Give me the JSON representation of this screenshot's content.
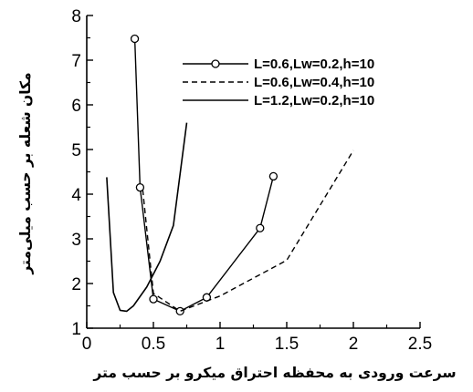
{
  "chart_data": {
    "type": "line",
    "xlabel": "سرعت ورودی به محفظه احتراق میکرو بر حسب متر",
    "ylabel": "مکان شعله بر حسب میلی‌متر",
    "xlim": [
      0,
      2.5
    ],
    "ylim": [
      1,
      8
    ],
    "xticks": [
      {
        "value": 0,
        "label": "0"
      },
      {
        "value": 0.5,
        "label": "0.5"
      },
      {
        "value": 1,
        "label": "1"
      },
      {
        "value": 1.5,
        "label": "1.5"
      },
      {
        "value": 2,
        "label": "2"
      },
      {
        "value": 2.5,
        "label": "2.5"
      }
    ],
    "yticks": [
      {
        "value": 1,
        "label": "1"
      },
      {
        "value": 2,
        "label": "2"
      },
      {
        "value": 3,
        "label": "3"
      },
      {
        "value": 4,
        "label": "4"
      },
      {
        "value": 5,
        "label": "5"
      },
      {
        "value": 6,
        "label": "6"
      },
      {
        "value": 7,
        "label": "7"
      },
      {
        "value": 8,
        "label": "8"
      }
    ],
    "grid": false,
    "legend_position": "top-right",
    "series": [
      {
        "name": "L=0.6,Lw=0.2,h=10",
        "style": "solid-circle-markers",
        "points": [
          {
            "x": 0.36,
            "y": 7.48
          },
          {
            "x": 0.4,
            "y": 4.15
          },
          {
            "x": 0.5,
            "y": 1.65
          },
          {
            "x": 0.7,
            "y": 1.38
          },
          {
            "x": 0.9,
            "y": 1.69
          },
          {
            "x": 1.3,
            "y": 3.24
          },
          {
            "x": 1.4,
            "y": 4.4
          }
        ]
      },
      {
        "name": "L=0.6,Lw=0.4,h=10",
        "style": "dashed",
        "points": [
          {
            "x": 0.42,
            "y": 4.1
          },
          {
            "x": 0.5,
            "y": 1.78
          },
          {
            "x": 0.7,
            "y": 1.38
          },
          {
            "x": 1.0,
            "y": 1.72
          },
          {
            "x": 1.5,
            "y": 2.52
          },
          {
            "x": 2.0,
            "y": 4.98
          }
        ]
      },
      {
        "name": "L=1.2,Lw=0.2,h=10",
        "style": "solid",
        "points": [
          {
            "x": 0.15,
            "y": 4.38
          },
          {
            "x": 0.2,
            "y": 1.8
          },
          {
            "x": 0.25,
            "y": 1.4
          },
          {
            "x": 0.3,
            "y": 1.38
          },
          {
            "x": 0.35,
            "y": 1.5
          },
          {
            "x": 0.45,
            "y": 1.92
          },
          {
            "x": 0.55,
            "y": 2.5
          },
          {
            "x": 0.65,
            "y": 3.3
          },
          {
            "x": 0.75,
            "y": 5.6
          }
        ]
      }
    ]
  }
}
